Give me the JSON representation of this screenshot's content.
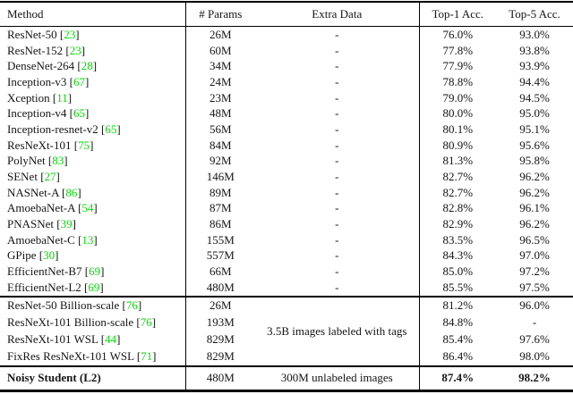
{
  "table": {
    "columns": [
      "Method",
      "# Params",
      "Extra Data",
      "Top-1 Acc.",
      "Top-5 Acc."
    ],
    "citation_color": "#00dd00",
    "sections": [
      {
        "rows": [
          {
            "method": "ResNet-50",
            "cite": "23",
            "params": "26M",
            "extra": "-",
            "top1": "76.0%",
            "top5": "93.0%"
          },
          {
            "method": "ResNet-152",
            "cite": "23",
            "params": "60M",
            "extra": "-",
            "top1": "77.8%",
            "top5": "93.8%"
          },
          {
            "method": "DenseNet-264",
            "cite": "28",
            "params": "34M",
            "extra": "-",
            "top1": "77.9%",
            "top5": "93.9%"
          },
          {
            "method": "Inception-v3",
            "cite": "67",
            "params": "24M",
            "extra": "-",
            "top1": "78.8%",
            "top5": "94.4%"
          },
          {
            "method": "Xception",
            "cite": "11",
            "params": "23M",
            "extra": "-",
            "top1": "79.0%",
            "top5": "94.5%"
          },
          {
            "method": "Inception-v4",
            "cite": "65",
            "params": "48M",
            "extra": "-",
            "top1": "80.0%",
            "top5": "95.0%"
          },
          {
            "method": "Inception-resnet-v2",
            "cite": "65",
            "params": "56M",
            "extra": "-",
            "top1": "80.1%",
            "top5": "95.1%"
          },
          {
            "method": "ResNeXt-101",
            "cite": "75",
            "params": "84M",
            "extra": "-",
            "top1": "80.9%",
            "top5": "95.6%"
          },
          {
            "method": "PolyNet",
            "cite": "83",
            "params": "92M",
            "extra": "-",
            "top1": "81.3%",
            "top5": "95.8%"
          },
          {
            "method": "SENet",
            "cite": "27",
            "params": "146M",
            "extra": "-",
            "top1": "82.7%",
            "top5": "96.2%"
          },
          {
            "method": "NASNet-A",
            "cite": "86",
            "params": "89M",
            "extra": "-",
            "top1": "82.7%",
            "top5": "96.2%"
          },
          {
            "method": "AmoebaNet-A",
            "cite": "54",
            "params": "87M",
            "extra": "-",
            "top1": "82.8%",
            "top5": "96.1%"
          },
          {
            "method": "PNASNet",
            "cite": "39",
            "params": "86M",
            "extra": "-",
            "top1": "82.9%",
            "top5": "96.2%"
          },
          {
            "method": "AmoebaNet-C",
            "cite": "13",
            "params": "155M",
            "extra": "-",
            "top1": "83.5%",
            "top5": "96.5%"
          },
          {
            "method": "GPipe",
            "cite": "30",
            "params": "557M",
            "extra": "-",
            "top1": "84.3%",
            "top5": "97.0%"
          },
          {
            "method": "EfficientNet-B7",
            "cite": "69",
            "params": "66M",
            "extra": "-",
            "top1": "85.0%",
            "top5": "97.2%"
          },
          {
            "method": "EfficientNet-L2",
            "cite": "69",
            "params": "480M",
            "extra": "-",
            "top1": "85.5%",
            "top5": "97.5%"
          }
        ]
      },
      {
        "extra_merged": "3.5B images labeled with tags",
        "rows": [
          {
            "method": "ResNet-50 Billion-scale",
            "cite": "76",
            "params": "26M",
            "top1": "81.2%",
            "top5": "96.0%"
          },
          {
            "method": "ResNeXt-101 Billion-scale",
            "cite": "76",
            "params": "193M",
            "top1": "84.8%",
            "top5": "-"
          },
          {
            "method": "ResNeXt-101 WSL",
            "cite": "44",
            "params": "829M",
            "top1": "85.4%",
            "top5": "97.6%"
          },
          {
            "method": "FixRes ResNeXt-101 WSL",
            "cite": "71",
            "params": "829M",
            "top1": "86.4%",
            "top5": "98.0%"
          }
        ]
      },
      {
        "bold": true,
        "rows": [
          {
            "method": "Noisy Student (L2)",
            "params": "480M",
            "extra": "300M unlabeled images",
            "top1": "87.4%",
            "top5": "98.2%"
          }
        ]
      }
    ]
  }
}
